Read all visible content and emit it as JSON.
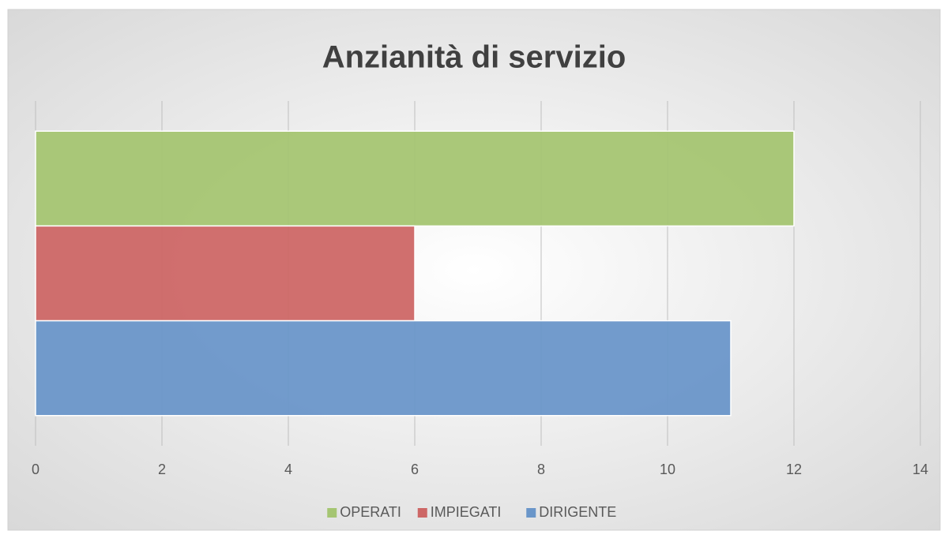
{
  "chart_data": {
    "type": "hbar",
    "title": "Anzianità di servizio",
    "categories": [
      null
    ],
    "series": [
      {
        "name": "OPERATI",
        "color": "#a5c572",
        "values": [
          12
        ]
      },
      {
        "name": "IMPIEGATI",
        "color": "#cd6766",
        "values": [
          6
        ]
      },
      {
        "name": "DIRIGENTE",
        "color": "#6a96c9",
        "values": [
          11
        ]
      }
    ],
    "xlim": [
      0,
      14
    ],
    "xticks": [
      0,
      2,
      4,
      6,
      8,
      10,
      12,
      14
    ],
    "grid": true,
    "legend": "bottom"
  }
}
